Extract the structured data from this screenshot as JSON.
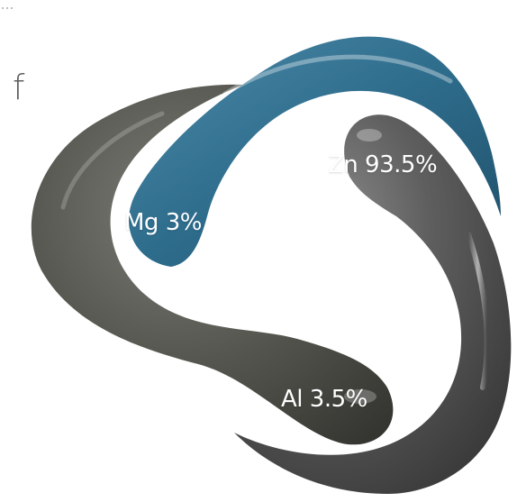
{
  "panel_label": "f",
  "segments": [
    {
      "name": "Zn",
      "label": "Zn 93.5%",
      "percent": 93.5,
      "color": "#5c5c5c"
    },
    {
      "name": "Mg",
      "label": "Mg 3%",
      "percent": 3,
      "color": "#2e6c8c"
    },
    {
      "name": "Al",
      "label": "Al 3.5%",
      "percent": 3.5,
      "color": "#474747"
    }
  ],
  "colors": {
    "background": "#ffffff",
    "zn_dark": "#4a4a4a",
    "zn_light": "#6e6e6e",
    "mg_blue": "#2e6c8c",
    "al_gray": "#3f403c",
    "panel_text": "#5e5e5e"
  }
}
